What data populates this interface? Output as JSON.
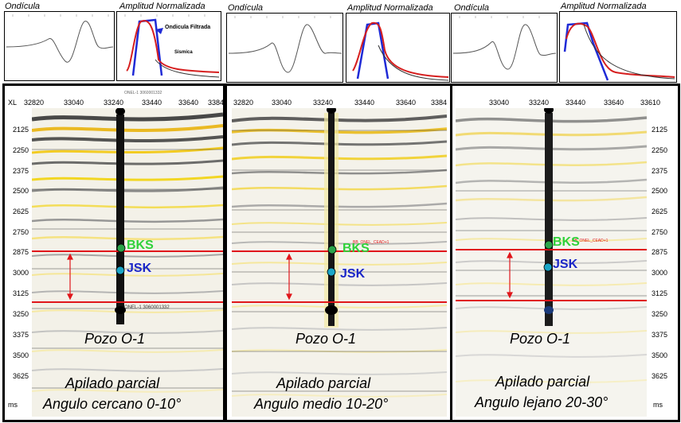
{
  "panels": [
    {
      "ondicula_label": "Ondícula",
      "amplitud_label": "Amplitud Normalizada",
      "legend_filtrada": "Ondicula Filtrada",
      "legend_sismica": "Sismica",
      "xl_prefix": "XL",
      "xl_ticks": [
        "32820",
        "33040",
        "33240",
        "33440",
        "33640",
        "3384"
      ],
      "depth_ticks": [
        "2125",
        "2250",
        "2375",
        "2500",
        "2625",
        "2750",
        "2875",
        "3000",
        "3125",
        "3250",
        "3375",
        "3500",
        "3625"
      ],
      "ms_label": "ms",
      "well_top_label": "ONEL-1 3060001332",
      "well_bottom_label": "ONEL-1 3060001332",
      "bks_label": "BKS",
      "jsk_label": "JSK",
      "pozo": "Pozo O-1",
      "apilado": "Apilado parcial",
      "angulo": "Angulo cercano 0-10°"
    },
    {
      "ondicula_label": "Ondícula",
      "amplitud_label": "Amplitud Normalizada",
      "xl_ticks": [
        "32820",
        "33040",
        "33240",
        "33440",
        "33640",
        "3384"
      ],
      "well_tag": "BB_ONEL_CEAD+1",
      "bks_label": "BKS",
      "jsk_label": "JSK",
      "pozo": "Pozo O-1",
      "apilado": "Apilado parcial",
      "angulo": "Angulo medio 10-20°"
    },
    {
      "ondicula_label": "Ondícula",
      "amplitud_label": "Amplitud Normalizada",
      "xl_ticks": [
        "33040",
        "33240",
        "33440",
        "33640",
        "33610"
      ],
      "depth_ticks": [
        "2125",
        "2250",
        "2375",
        "2500",
        "2625",
        "2750",
        "2875",
        "3000",
        "3125",
        "3250",
        "3375",
        "3500",
        "3625"
      ],
      "ms_label": "ms",
      "well_tag": "BB_ONEL_CEAD+1",
      "bks_label": "BKS",
      "jsk_label": "JSK",
      "pozo": "Pozo O-1",
      "apilado": "Apilado parcial",
      "angulo": "Angulo lejano 20-30°"
    }
  ],
  "colors": {
    "horizon": "#e0161b",
    "arrow": "#e0161b",
    "bks_text": "#2fd23a",
    "jsk_text": "#1a26c8",
    "bks_dot": "#2aa44a",
    "jsk_dot": "#1aa6c8",
    "filtrada": "#1f2ad6",
    "sismica": "#d61f1f"
  }
}
